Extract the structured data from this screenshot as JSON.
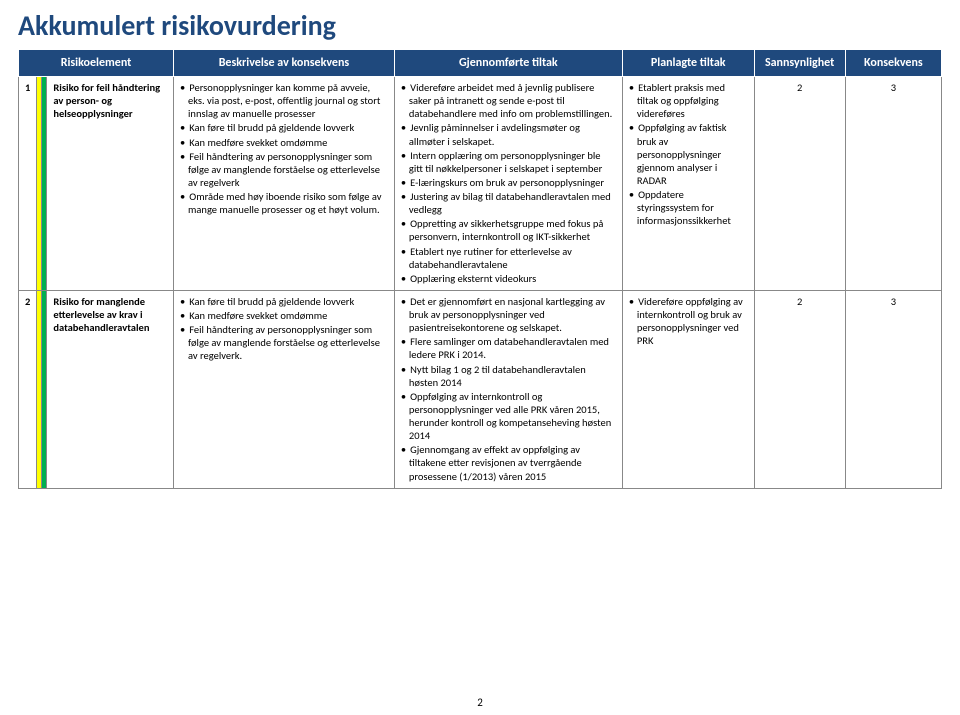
{
  "title": "Akkumulert risikovurdering",
  "headers": {
    "risk": "Risikoelement",
    "desc": "Beskrivelse av konsekvens",
    "done": "Gjennomførte tiltak",
    "plan": "Planlagte tiltak",
    "prob": "Sannsynlighet",
    "cons": "Konsekvens"
  },
  "rows": [
    {
      "idx": "1",
      "risk": "Risiko for feil håndtering av person- og helseopplysninger",
      "desc": [
        "Personopplysninger kan komme på avveie, eks. via post, e-post, offentlig journal og stort innslag av manuelle prosesser",
        "Kan føre til brudd på gjeldende lovverk",
        "Kan medføre svekket omdømme",
        "Feil håndtering av personopplysninger som følge av manglende forståelse og etterlevelse av regelverk",
        "Område med høy iboende risiko som følge av mange manuelle prosesser og et høyt volum."
      ],
      "done": [
        "Videreføre arbeidet med å jevnlig publisere saker på intranett og sende e-post til databehandlere med info om problemstillingen.",
        "Jevnlig påminnelser i avdelingsmøter og allmøter i selskapet.",
        "Intern opplæring om personopplysninger ble gitt til nøkkelpersoner i selskapet i september",
        "E-læringskurs om bruk av personopplysninger",
        "Justering av bilag til databehandleravtalen med vedlegg",
        "Oppretting av sikkerhetsgruppe med fokus på personvern, internkontroll og IKT-sikkerhet",
        "Etablert nye rutiner for etterlevelse av databehandleravtalene",
        "Opplæring eksternt videokurs"
      ],
      "plan": [
        "Etablert praksis med tiltak og oppfølging videreføres",
        "Oppfølging av faktisk bruk av personopplysninger gjennom analyser i RADAR",
        "Oppdatere styringssystem for informasjonssikkerhet"
      ],
      "prob": "2",
      "cons": "3"
    },
    {
      "idx": "2",
      "risk": "Risiko for manglende etterlevelse av krav i databehandleravtalen",
      "desc": [
        "Kan føre til brudd på gjeldende lovverk",
        "Kan medføre svekket omdømme",
        "Feil håndtering av personopplysninger som følge av manglende forståelse og etterlevelse av regelverk."
      ],
      "done": [
        "Det er gjennomført en nasjonal kartlegging av bruk av personopplysninger ved pasientreisekontorene og selskapet.",
        "Flere samlinger om databehandleravtalen med ledere PRK i 2014.",
        "Nytt bilag 1 og 2 til databehandleravtalen høsten 2014",
        "Oppfølging av internkontroll og personopplysninger ved alle PRK våren 2015, herunder kontroll og kompetanseheving høsten 2014",
        "Gjennomgang av effekt av oppfølging av tiltakene etter revisjonen av tverrgående prosessene (1/2013) våren 2015"
      ],
      "plan": [
        "Videreføre oppfølging av internkontroll og bruk av personopplysninger ved PRK"
      ],
      "prob": "2",
      "cons": "3"
    }
  ],
  "footerPage": "2"
}
